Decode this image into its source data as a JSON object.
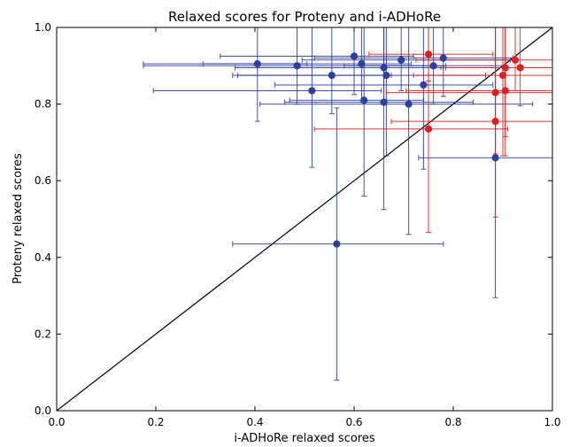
{
  "chart_data": {
    "type": "scatter",
    "title": "Relaxed scores for Proteny and i-ADHoRe",
    "xlabel": "i-ADHoRe relaxed scores",
    "ylabel": "Proteny relaxed scores",
    "xlim": [
      0.0,
      1.0
    ],
    "ylim": [
      0.0,
      1.0
    ],
    "xticks": [
      "0.0",
      "0.2",
      "0.4",
      "0.6",
      "0.8",
      "1.0"
    ],
    "yticks": [
      "0.0",
      "0.2",
      "0.4",
      "0.6",
      "0.8",
      "1.0"
    ],
    "grid": false,
    "reference_line": {
      "from": [
        0,
        0
      ],
      "to": [
        1,
        1
      ],
      "color": "#000000"
    },
    "series": [
      {
        "color": "#2b3fa0",
        "points": [
          {
            "x": 0.405,
            "y": 0.905,
            "xerr": [
              0.23,
              0.1
            ],
            "yerr": [
              0.15,
              0.1
            ]
          },
          {
            "x": 0.485,
            "y": 0.9,
            "xerr": [
              0.31,
              0.3
            ],
            "yerr": [
              0.1,
              0.1
            ]
          },
          {
            "x": 0.515,
            "y": 0.835,
            "xerr": [
              0.32,
              0.14
            ],
            "yerr": [
              0.2,
              0.165
            ]
          },
          {
            "x": 0.555,
            "y": 0.875,
            "xerr": [
              0.2,
              0.12
            ],
            "yerr": [
              0.1,
              0.125
            ]
          },
          {
            "x": 0.6,
            "y": 0.925,
            "xerr": [
              0.27,
              0.12
            ],
            "yerr": [
              0.1,
              0.075
            ]
          },
          {
            "x": 0.615,
            "y": 0.905,
            "xerr": [
              0.32,
              0.1
            ],
            "yerr": [
              0.1,
              0.095
            ]
          },
          {
            "x": 0.62,
            "y": 0.81,
            "xerr": [
              0.15,
              0.12
            ],
            "yerr": [
              0.25,
              0.19
            ]
          },
          {
            "x": 0.66,
            "y": 0.805,
            "xerr": [
              0.2,
              0.18
            ],
            "yerr": [
              0.28,
              0.195
            ]
          },
          {
            "x": 0.66,
            "y": 0.895,
            "xerr": [
              0.3,
              0.12
            ],
            "yerr": [
              0.09,
              0.105
            ]
          },
          {
            "x": 0.665,
            "y": 0.875,
            "xerr": [
              0.3,
              0.2
            ],
            "yerr": [
              0.21,
              0.125
            ]
          },
          {
            "x": 0.695,
            "y": 0.915,
            "xerr": [
              0.2,
              0.22
            ],
            "yerr": [
              0.08,
              0.085
            ]
          },
          {
            "x": 0.71,
            "y": 0.8,
            "xerr": [
              0.3,
              0.25
            ],
            "yerr": [
              0.34,
              0.2
            ]
          },
          {
            "x": 0.74,
            "y": 0.85,
            "xerr": [
              0.3,
              0.14
            ],
            "yerr": [
              0.22,
              0.15
            ]
          },
          {
            "x": 0.76,
            "y": 0.9,
            "xerr": [
              0.18,
              0.14
            ],
            "yerr": [
              0.1,
              0.1
            ]
          },
          {
            "x": 0.78,
            "y": 0.92,
            "xerr": [
              0.26,
              0.14
            ],
            "yerr": [
              0.1,
              0.08
            ]
          },
          {
            "x": 0.565,
            "y": 0.435,
            "xerr": [
              0.21,
              0.215
            ],
            "yerr": [
              0.355,
              0.355
            ]
          },
          {
            "x": 0.885,
            "y": 0.66,
            "xerr": [
              0.155,
              0.115
            ],
            "yerr": [
              0.365,
              0.34
            ]
          }
        ]
      },
      {
        "color": "#e02020",
        "points": [
          {
            "x": 0.75,
            "y": 0.93,
            "xerr": [
              0.12,
              0.13
            ],
            "yerr": [
              0.07,
              0.07
            ]
          },
          {
            "x": 0.75,
            "y": 0.735,
            "xerr": [
              0.23,
              0.16
            ],
            "yerr": [
              0.27,
              0.265
            ]
          },
          {
            "x": 0.885,
            "y": 0.83,
            "xerr": [
              0.22,
              0.115
            ],
            "yerr": [
              0.16,
              0.17
            ]
          },
          {
            "x": 0.885,
            "y": 0.755,
            "xerr": [
              0.21,
              0.115
            ],
            "yerr": [
              0.25,
              0.245
            ]
          },
          {
            "x": 0.9,
            "y": 0.875,
            "xerr": [
              0.18,
              0.1
            ],
            "yerr": [
              0.21,
              0.125
            ]
          },
          {
            "x": 0.905,
            "y": 0.895,
            "xerr": [
              0.12,
              0.095
            ],
            "yerr": [
              0.18,
              0.105
            ]
          },
          {
            "x": 0.905,
            "y": 0.835,
            "xerr": [
              0.2,
              0.095
            ],
            "yerr": [
              0.17,
              0.165
            ]
          },
          {
            "x": 0.925,
            "y": 0.915,
            "xerr": [
              0.2,
              0.075
            ],
            "yerr": [
              0.08,
              0.085
            ]
          },
          {
            "x": 0.935,
            "y": 0.895,
            "xerr": [
              0.16,
              0.065
            ],
            "yerr": [
              0.1,
              0.105
            ]
          }
        ]
      }
    ]
  }
}
